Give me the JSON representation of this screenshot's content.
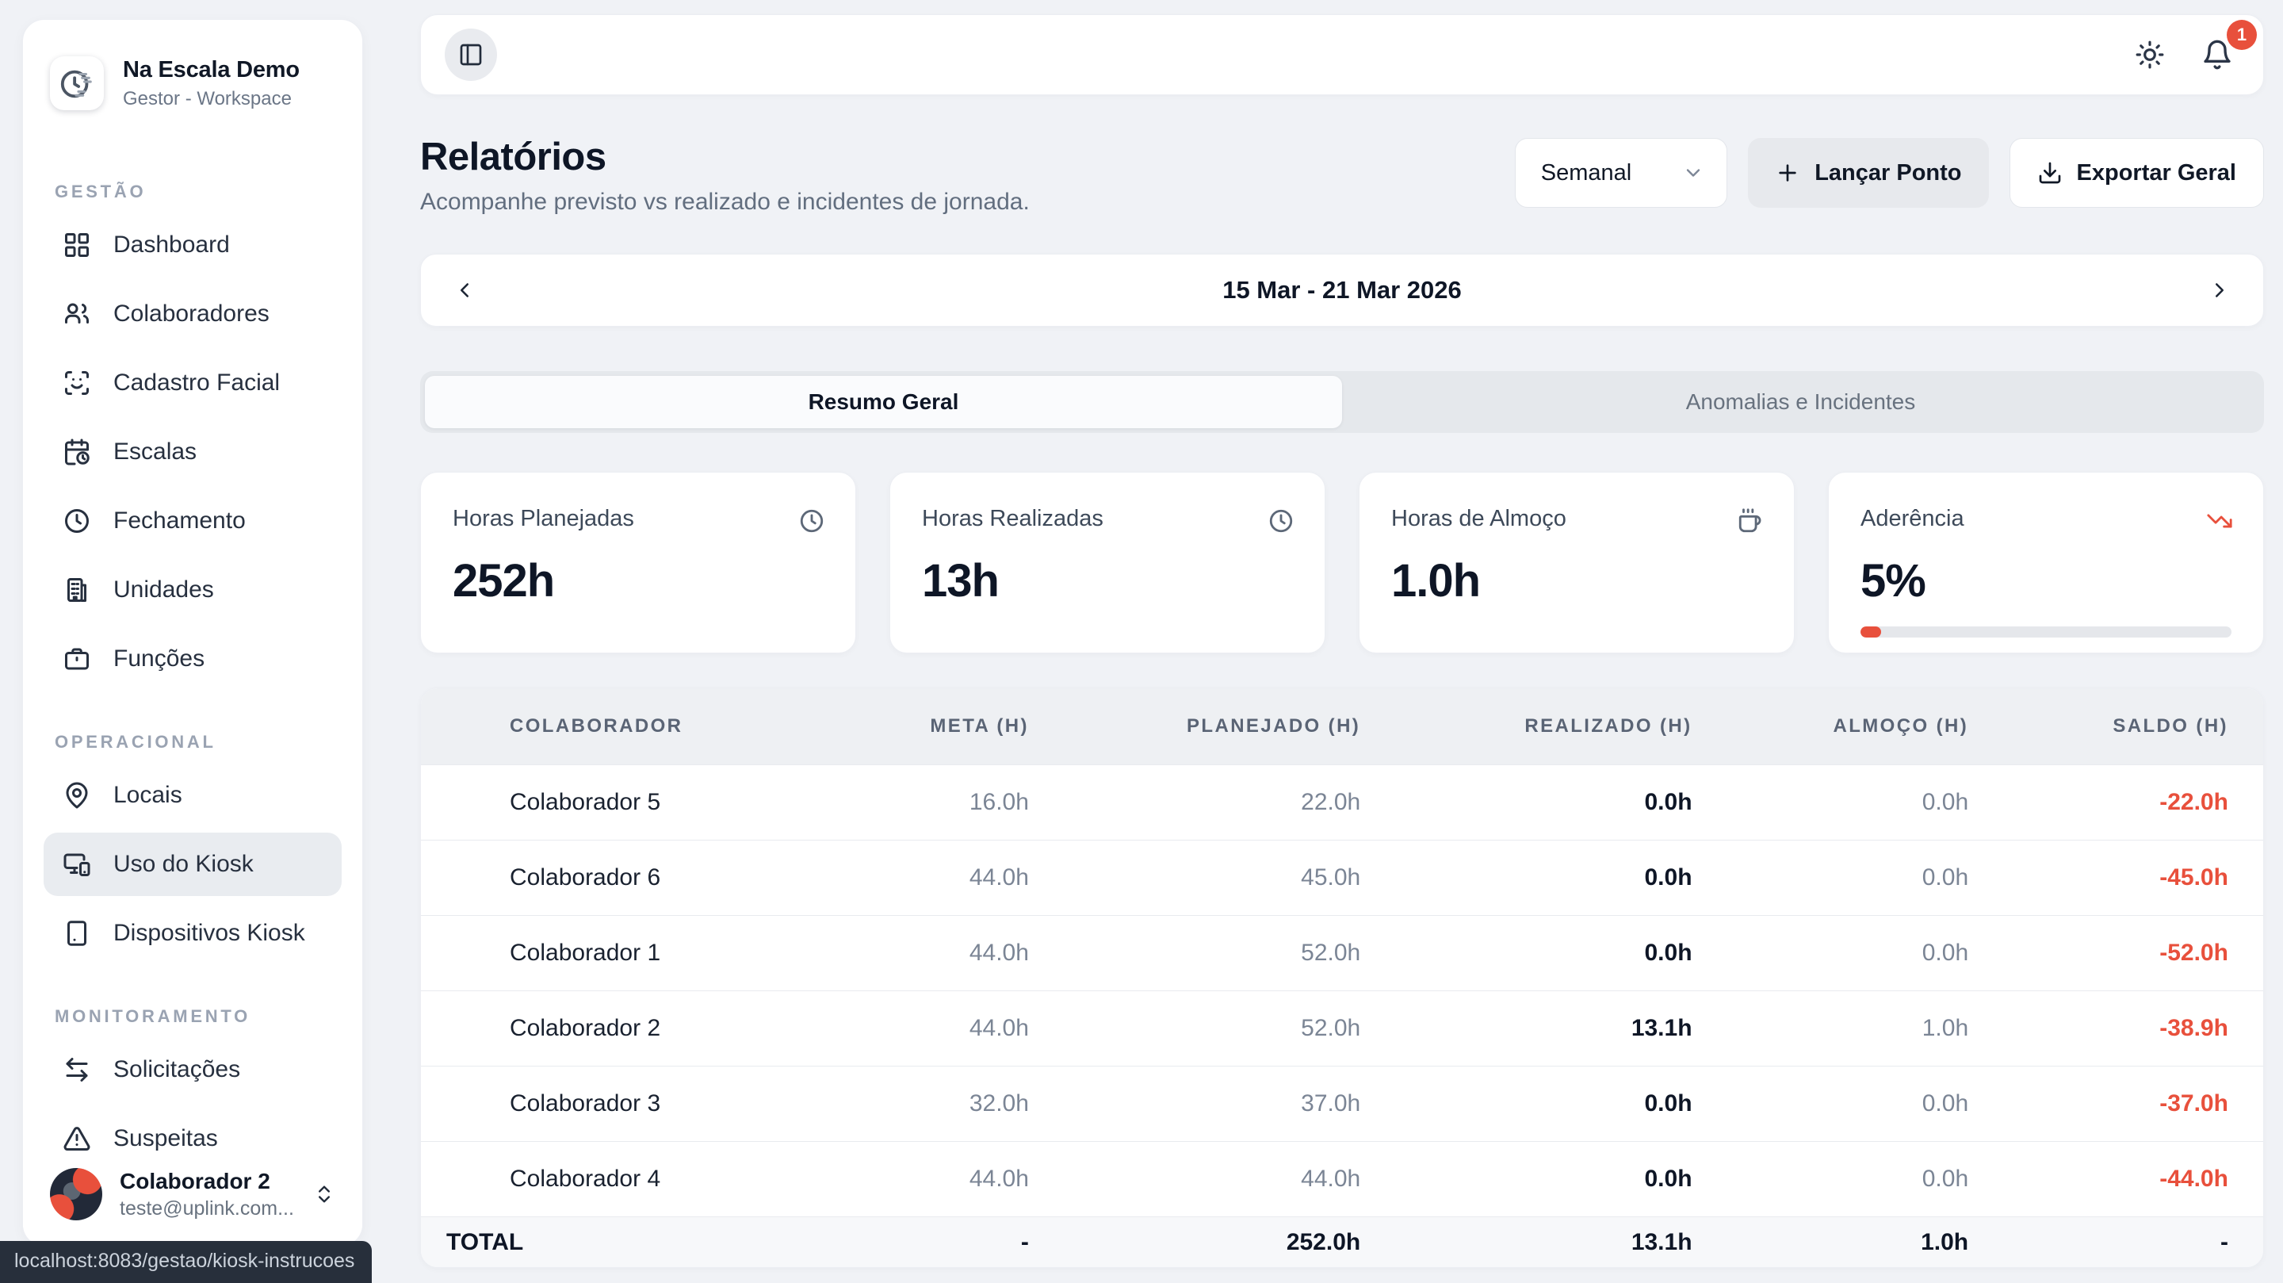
{
  "workspace": {
    "name": "Na Escala Demo",
    "role": "Gestor - Workspace"
  },
  "sidebar": {
    "sections": [
      {
        "label": "GESTÃO",
        "items": [
          {
            "label": "Dashboard",
            "icon": "layout-grid"
          },
          {
            "label": "Colaboradores",
            "icon": "users"
          },
          {
            "label": "Cadastro Facial",
            "icon": "scan-face"
          },
          {
            "label": "Escalas",
            "icon": "calendar-clock"
          },
          {
            "label": "Fechamento",
            "icon": "clock"
          },
          {
            "label": "Unidades",
            "icon": "building"
          },
          {
            "label": "Funções",
            "icon": "briefcase"
          }
        ]
      },
      {
        "label": "OPERACIONAL",
        "items": [
          {
            "label": "Locais",
            "icon": "map-pin"
          },
          {
            "label": "Uso do Kiosk",
            "icon": "monitor-smartphone",
            "active": true
          },
          {
            "label": "Dispositivos Kiosk",
            "icon": "tablet"
          }
        ]
      },
      {
        "label": "MONITORAMENTO",
        "items": [
          {
            "label": "Solicitações",
            "icon": "arrow-right-left"
          },
          {
            "label": "Suspeitas",
            "icon": "triangle-alert"
          }
        ]
      }
    ],
    "user": {
      "name": "Colaborador 2",
      "email": "teste@uplink.com..."
    }
  },
  "statusbar": {
    "url": "localhost:8083/gestao/kiosk-instrucoes"
  },
  "topbar": {
    "notification_count": "1"
  },
  "header": {
    "title": "Relatórios",
    "subtitle": "Acompanhe previsto vs realizado e incidentes de jornada.",
    "period_selector": "Semanal",
    "launch_button": "Lançar Ponto",
    "export_button": "Exportar Geral"
  },
  "date_nav": {
    "range": "15 Mar - 21 Mar 2026"
  },
  "tabs": [
    {
      "label": "Resumo Geral",
      "active": true
    },
    {
      "label": "Anomalias e Incidentes",
      "active": false
    }
  ],
  "summary_cards": [
    {
      "label": "Horas Planejadas",
      "value": "252h",
      "icon": "clock"
    },
    {
      "label": "Horas Realizadas",
      "value": "13h",
      "icon": "clock"
    },
    {
      "label": "Horas de Almoço",
      "value": "1.0h",
      "icon": "coffee"
    },
    {
      "label": "Aderência",
      "value": "5%",
      "icon": "trending-down",
      "progress_percent": 5
    }
  ],
  "table": {
    "columns": [
      "COLABORADOR",
      "META (H)",
      "PLANEJADO (H)",
      "REALIZADO (H)",
      "ALMOÇO (H)",
      "SALDO (H)"
    ],
    "rows": [
      {
        "name": "Colaborador 5",
        "meta": "16.0h",
        "planejado": "22.0h",
        "realizado": "0.0h",
        "almoco": "0.0h",
        "saldo": "-22.0h"
      },
      {
        "name": "Colaborador 6",
        "meta": "44.0h",
        "planejado": "45.0h",
        "realizado": "0.0h",
        "almoco": "0.0h",
        "saldo": "-45.0h"
      },
      {
        "name": "Colaborador 1",
        "meta": "44.0h",
        "planejado": "52.0h",
        "realizado": "0.0h",
        "almoco": "0.0h",
        "saldo": "-52.0h"
      },
      {
        "name": "Colaborador 2",
        "meta": "44.0h",
        "planejado": "52.0h",
        "realizado": "13.1h",
        "almoco": "1.0h",
        "saldo": "-38.9h"
      },
      {
        "name": "Colaborador 3",
        "meta": "32.0h",
        "planejado": "37.0h",
        "realizado": "0.0h",
        "almoco": "0.0h",
        "saldo": "-37.0h"
      },
      {
        "name": "Colaborador 4",
        "meta": "44.0h",
        "planejado": "44.0h",
        "realizado": "0.0h",
        "almoco": "0.0h",
        "saldo": "-44.0h"
      }
    ],
    "total": {
      "name": "TOTAL",
      "meta": "-",
      "planejado": "252.0h",
      "realizado": "13.1h",
      "almoco": "1.0h",
      "saldo": "-"
    }
  },
  "colors": {
    "accent_red": "#e8503c",
    "page_bg": "#f0f2f6"
  }
}
